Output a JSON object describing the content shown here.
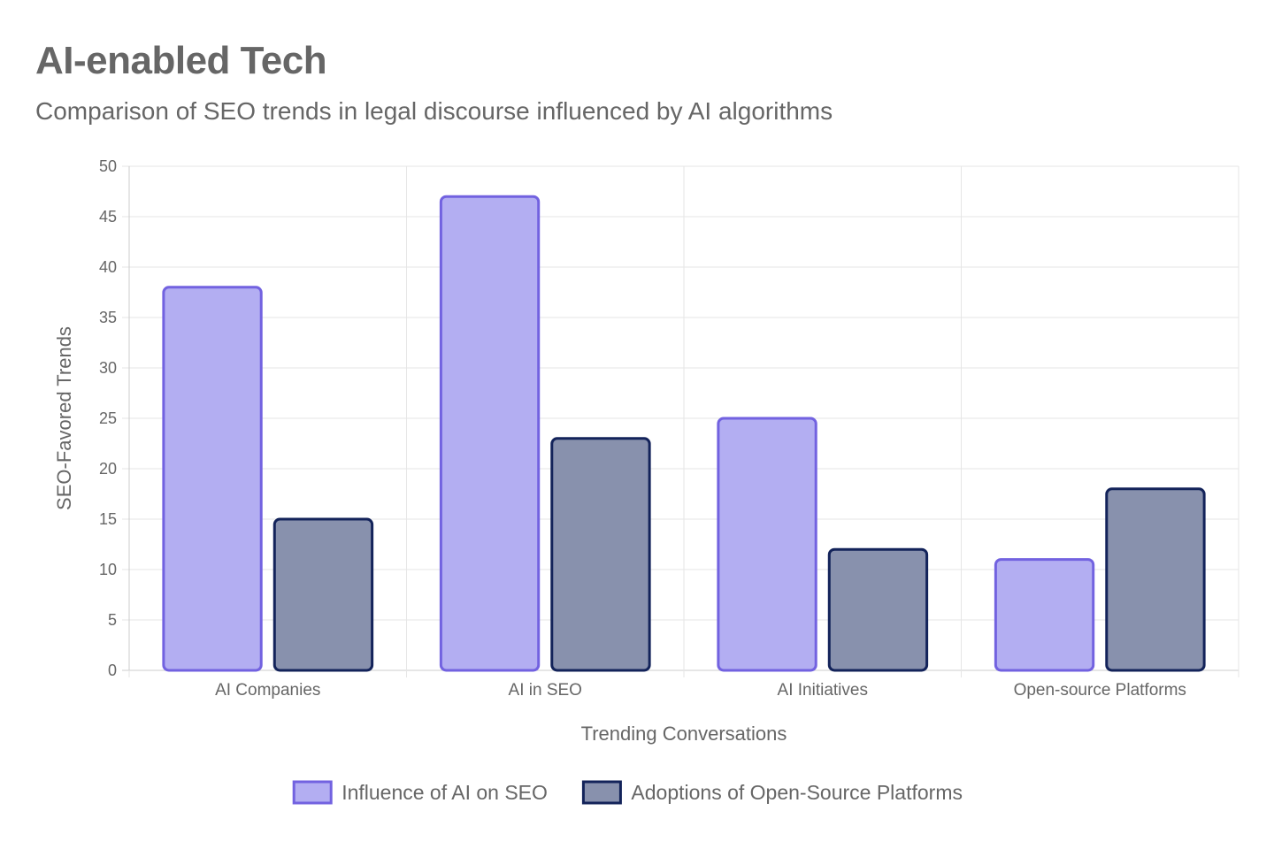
{
  "chart_data": {
    "type": "bar",
    "title": "AI-enabled Tech",
    "subtitle": "Comparison of SEO trends in legal discourse influenced by AI algorithms",
    "xlabel": "Trending Conversations",
    "ylabel": "SEO-Favored Trends",
    "categories": [
      "AI Companies",
      "AI in SEO",
      "AI Initiatives",
      "Open-source Platforms"
    ],
    "ylim": [
      0,
      50
    ],
    "ytick_step": 5,
    "grid": true,
    "legend_position": "bottom",
    "series": [
      {
        "name": "Influence of AI on SEO",
        "values": [
          38,
          47,
          25,
          11
        ],
        "fill": "#b3aef2",
        "stroke": "#7262e0"
      },
      {
        "name": "Adoptions of Open-Source Platforms",
        "values": [
          15,
          23,
          12,
          18
        ],
        "fill": "#8891ad",
        "stroke": "#13235a"
      }
    ]
  }
}
